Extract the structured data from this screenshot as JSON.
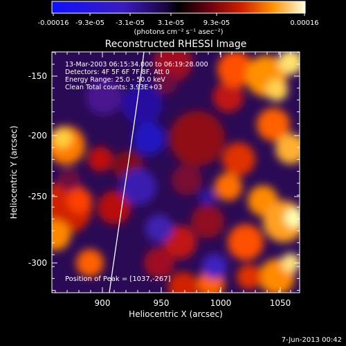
{
  "colorbar": {
    "tick_labels": [
      "-0.00016",
      "-9.3e-05",
      "-3.1e-05",
      "3.1e-05",
      "9.3e-05",
      "0.00016"
    ],
    "units_label": "(photons cm⁻² s⁻¹ asec⁻²)"
  },
  "plot": {
    "title": "Reconstructed RHESSI Image",
    "info_lines": [
      "13-Mar-2003 06:15:34.000 to 06:19:28.000",
      "Detectors: 4F 5F 6F 7F 8F, Att 0",
      "Energy Range: 25.0 - 50.0 keV",
      "Clean     Total counts: 3.93E+03"
    ],
    "peak_label": "Position of Peak = [1037,-267]",
    "xlabel": "Heliocentric X (arcsec)",
    "ylabel": "Heliocentric Y (arcsec)",
    "xticks": [
      "900",
      "950",
      "1000",
      "1050"
    ],
    "yticks": [
      "-150",
      "-200",
      "-250",
      "-300"
    ]
  },
  "footer": {
    "timestamp": "7-Jun-2013 00:42"
  },
  "colors": {
    "background": "#000000",
    "foreground": "#ffffff"
  }
}
